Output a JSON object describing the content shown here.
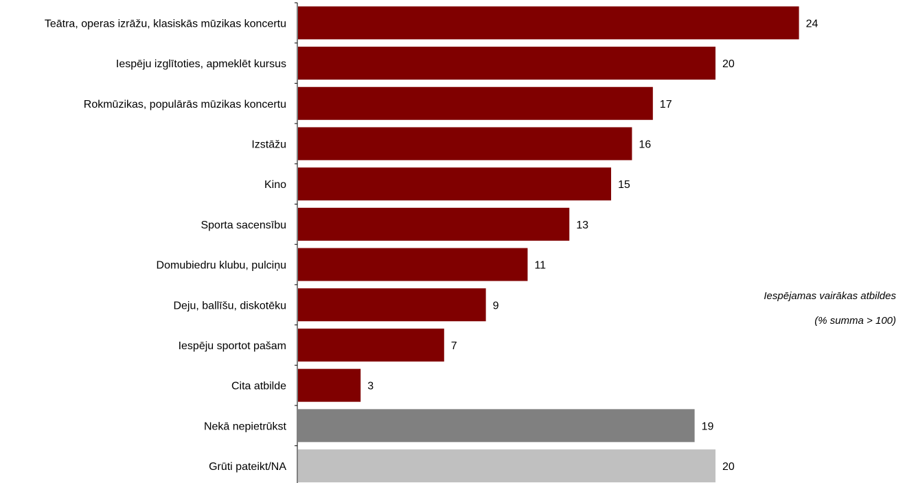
{
  "chart_data": {
    "type": "bar",
    "orientation": "horizontal",
    "categories": [
      "Teātra, operas izrāžu, klasiskās mūzikas koncertu",
      "Iespēju izglītoties, apmeklēt kursus",
      "Rokmūzikas, populārās mūzikas koncertu",
      "Izstāžu",
      "Kino",
      "Sporta sacensību",
      "Domubiedru klubu, pulciņu",
      "Deju, ballīšu, diskotēku",
      "Iespēju sportot pašam",
      "Cita atbilde",
      "Nekā nepietrūkst",
      "Grūti pateikt/NA"
    ],
    "values": [
      24,
      20,
      17,
      16,
      15,
      13,
      11,
      9,
      7,
      3,
      19,
      20
    ],
    "bar_colors": [
      "#800000",
      "#800000",
      "#800000",
      "#800000",
      "#800000",
      "#800000",
      "#800000",
      "#800000",
      "#800000",
      "#800000",
      "#808080",
      "#c0c0c0"
    ],
    "xlim": [
      0,
      24
    ],
    "grid": false,
    "notes": [
      "Iespējamas vairākas atbildes",
      "(% summa > 100)"
    ]
  }
}
